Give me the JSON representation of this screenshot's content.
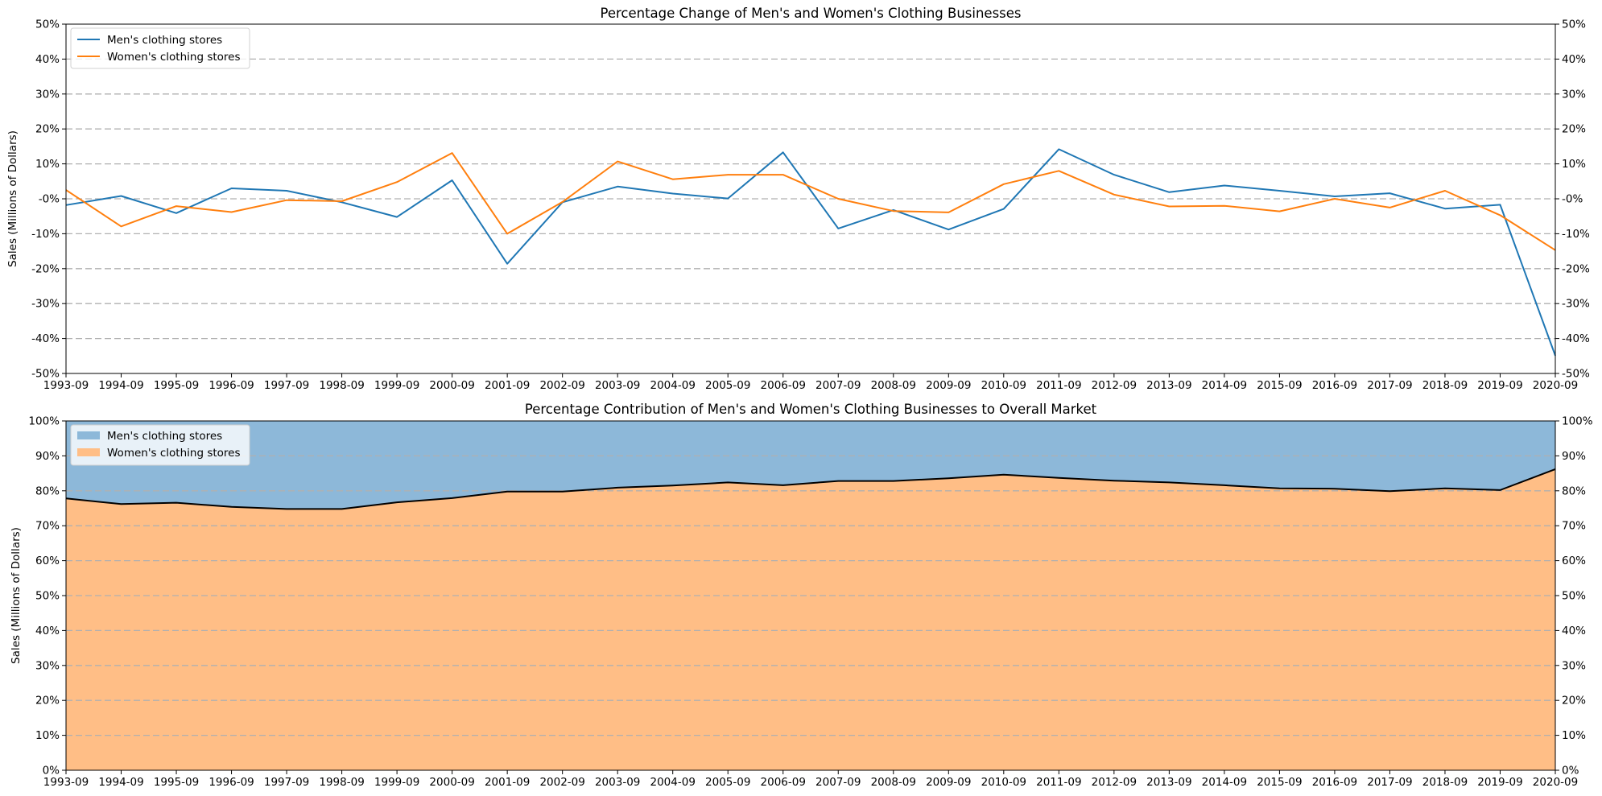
{
  "x_labels": [
    "1993-09",
    "1994-09",
    "1995-09",
    "1996-09",
    "1997-09",
    "1998-09",
    "1999-09",
    "2000-09",
    "2001-09",
    "2002-09",
    "2003-09",
    "2004-09",
    "2005-09",
    "2006-09",
    "2007-09",
    "2008-09",
    "2009-09",
    "2010-09",
    "2011-09",
    "2012-09",
    "2013-09",
    "2014-09",
    "2015-09",
    "2016-09",
    "2017-09",
    "2018-09",
    "2019-09",
    "2020-09"
  ],
  "colors": {
    "men": "#1f77b4",
    "women": "#ff7f0e",
    "men_fill": "#8db8d9",
    "women_fill": "#ffbe86",
    "grid": "#b0b0b0",
    "boundary": "#000000"
  },
  "chart_data": [
    {
      "type": "line",
      "title": "Percentage Change of Men's and Women's Clothing Businesses",
      "ylabel": "Sales (Millions of Dollars)",
      "ylim": [
        -50,
        50
      ],
      "yticks": [
        "-50%",
        "-40%",
        "-30%",
        "-20%",
        "-10%",
        "-0%",
        "10%",
        "20%",
        "30%",
        "40%",
        "50%"
      ],
      "grid": "horizontal dashed",
      "legend_position": "upper-left",
      "series": [
        {
          "name": "Men's clothing stores",
          "values": [
            -1.8,
            0.8,
            -4.1,
            3.0,
            2.3,
            -1.0,
            -5.2,
            5.3,
            -18.6,
            -1.0,
            3.5,
            1.5,
            0.1,
            13.3,
            -8.5,
            -3.2,
            -8.8,
            -2.9,
            14.2,
            6.9,
            1.9,
            3.8,
            2.3,
            0.7,
            1.6,
            -2.8,
            -1.7,
            -44.9
          ]
        },
        {
          "name": "Women's clothing stores",
          "values": [
            2.5,
            -7.9,
            -2.1,
            -3.8,
            -0.4,
            -0.7,
            4.8,
            13.1,
            -10.0,
            -0.9,
            10.7,
            5.6,
            6.9,
            6.9,
            0.0,
            -3.5,
            -3.9,
            4.2,
            8.0,
            1.2,
            -2.2,
            -2.0,
            -3.6,
            0.0,
            -2.5,
            2.3,
            -4.7,
            -14.7
          ]
        }
      ]
    },
    {
      "type": "area",
      "stacked": true,
      "title": "Percentage Contribution of Men's and Women's Clothing Businesses to Overall Market",
      "ylabel": "Sales (Millions of Dollars)",
      "ylim": [
        0,
        100
      ],
      "yticks": [
        "0%",
        "10%",
        "20%",
        "30%",
        "40%",
        "50%",
        "60%",
        "70%",
        "80%",
        "90%",
        "100%"
      ],
      "grid": "horizontal dashed",
      "legend_position": "upper-left",
      "series": [
        {
          "name": "Women's clothing stores",
          "values": [
            77.8,
            76.2,
            76.6,
            75.4,
            74.8,
            74.8,
            76.7,
            77.9,
            79.8,
            79.8,
            80.9,
            81.5,
            82.4,
            81.6,
            82.8,
            82.8,
            83.6,
            84.6,
            83.7,
            82.9,
            82.4,
            81.6,
            80.7,
            80.6,
            79.9,
            80.7,
            80.2,
            86.2
          ]
        },
        {
          "name": "Men's clothing stores",
          "values": [
            22.2,
            23.8,
            23.4,
            24.6,
            25.2,
            25.2,
            23.3,
            22.1,
            20.2,
            20.2,
            19.1,
            18.5,
            17.6,
            18.4,
            17.2,
            17.2,
            16.4,
            15.4,
            16.3,
            17.1,
            17.6,
            18.4,
            19.3,
            19.4,
            20.1,
            19.3,
            19.8,
            13.8
          ]
        }
      ]
    }
  ],
  "legend_top": [
    {
      "key": "men",
      "label": "Men's clothing stores"
    },
    {
      "key": "women",
      "label": "Women's clothing stores"
    }
  ],
  "legend_bottom": [
    {
      "key": "men",
      "label": "Men's clothing stores"
    },
    {
      "key": "women",
      "label": "Women's clothing stores"
    }
  ]
}
